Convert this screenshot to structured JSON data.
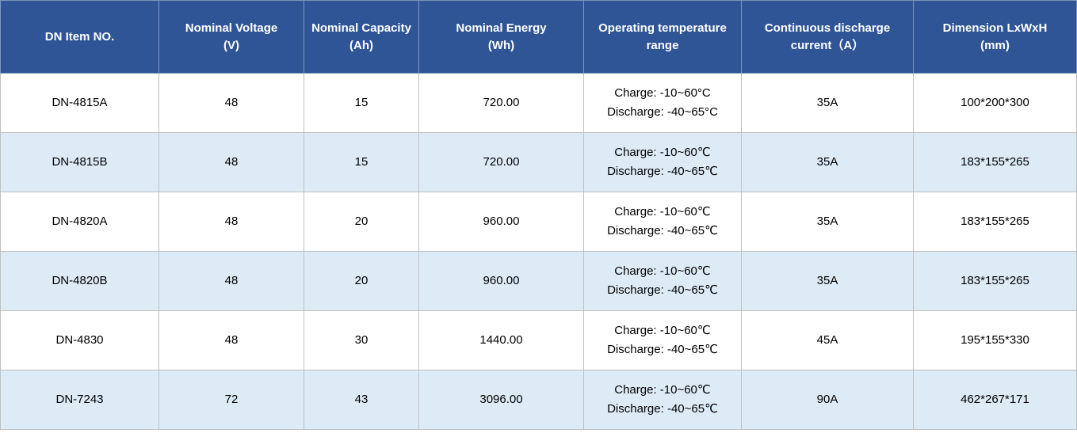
{
  "headers": [
    {
      "line1": "DN Item NO.",
      "line2": ""
    },
    {
      "line1": "Nominal Voltage",
      "line2": "(V)"
    },
    {
      "line1": "Nominal Capacity",
      "line2": "(Ah)"
    },
    {
      "line1": "Nominal Energy",
      "line2": "(Wh)"
    },
    {
      "line1": "Operating temperature",
      "line2": "range"
    },
    {
      "line1": "Continuous discharge",
      "line2": "current（A）"
    },
    {
      "line1": "Dimension LxWxH",
      "line2": "(mm)"
    }
  ],
  "rows": [
    {
      "item": "DN-4815A",
      "voltage": "48",
      "capacity": "15",
      "energy": "720.00",
      "charge": "Charge: -10~60°C",
      "discharge": "Discharge: -40~65°C",
      "current": "35A",
      "dimension": "100*200*300"
    },
    {
      "item": "DN-4815B",
      "voltage": "48",
      "capacity": "15",
      "energy": "720.00",
      "charge": "Charge: -10~60℃",
      "discharge": "Discharge: -40~65℃",
      "current": "35A",
      "dimension": "183*155*265"
    },
    {
      "item": "DN-4820A",
      "voltage": "48",
      "capacity": "20",
      "energy": "960.00",
      "charge": "Charge: -10~60℃",
      "discharge": "Discharge: -40~65℃",
      "current": "35A",
      "dimension": "183*155*265"
    },
    {
      "item": "DN-4820B",
      "voltage": "48",
      "capacity": "20",
      "energy": "960.00",
      "charge": "Charge: -10~60℃",
      "discharge": "Discharge: -40~65℃",
      "current": "35A",
      "dimension": "183*155*265"
    },
    {
      "item": "DN-4830",
      "voltage": "48",
      "capacity": "30",
      "energy": "1440.00",
      "charge": "Charge: -10~60℃",
      "discharge": "Discharge: -40~65℃",
      "current": "45A",
      "dimension": "195*155*330"
    },
    {
      "item": "DN-7243",
      "voltage": "72",
      "capacity": "43",
      "energy": "3096.00",
      "charge": "Charge: -10~60℃",
      "discharge": "Discharge: -40~65℃",
      "current": "90A",
      "dimension": "462*267*171"
    }
  ],
  "colors": {
    "header_bg": "#2f5597",
    "header_text": "#ffffff",
    "stripe_bg": "#ddebf7",
    "border": "#bfbfbf"
  }
}
